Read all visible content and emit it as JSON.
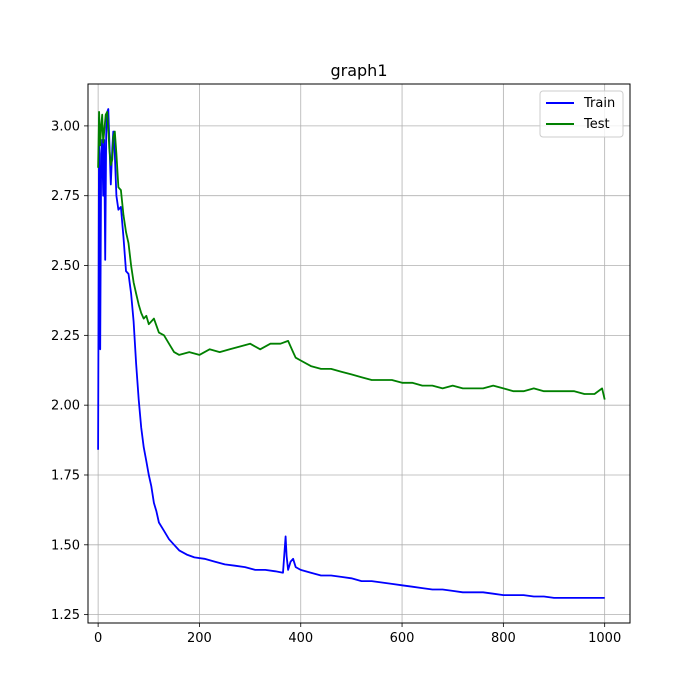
{
  "chart_data": {
    "type": "line",
    "title": "graph1",
    "xlabel": "",
    "ylabel": "",
    "xlim": [
      -20,
      1050
    ],
    "ylim": [
      1.22,
      3.15
    ],
    "xticks": [
      0,
      200,
      400,
      600,
      800,
      1000
    ],
    "xtick_labels": [
      "0",
      "200",
      "400",
      "600",
      "800",
      "1000"
    ],
    "yticks": [
      1.25,
      1.5,
      1.75,
      2.0,
      2.25,
      2.5,
      2.75,
      3.0
    ],
    "ytick_labels": [
      "1.25",
      "1.50",
      "1.75",
      "2.00",
      "2.25",
      "2.50",
      "2.75",
      "3.00"
    ],
    "grid": true,
    "legend_position": "top-right",
    "series": [
      {
        "name": "Train",
        "color": "#0000ff",
        "x": [
          0,
          2,
          4,
          6,
          8,
          10,
          12,
          14,
          16,
          18,
          20,
          22,
          25,
          28,
          30,
          33,
          36,
          40,
          45,
          50,
          55,
          60,
          65,
          70,
          75,
          80,
          85,
          90,
          95,
          100,
          105,
          110,
          115,
          120,
          130,
          140,
          150,
          160,
          175,
          190,
          210,
          230,
          250,
          270,
          290,
          310,
          330,
          350,
          365,
          370,
          372,
          375,
          380,
          385,
          390,
          400,
          420,
          440,
          460,
          480,
          500,
          520,
          540,
          560,
          580,
          600,
          620,
          640,
          660,
          680,
          700,
          720,
          740,
          760,
          780,
          800,
          820,
          840,
          860,
          880,
          900,
          920,
          940,
          960,
          980,
          1000
        ],
        "y": [
          1.84,
          3.03,
          2.2,
          2.9,
          2.95,
          2.75,
          2.95,
          2.52,
          2.97,
          3.05,
          3.06,
          2.95,
          2.79,
          2.92,
          2.98,
          2.9,
          2.75,
          2.7,
          2.71,
          2.6,
          2.48,
          2.47,
          2.4,
          2.3,
          2.15,
          2.02,
          1.92,
          1.85,
          1.8,
          1.75,
          1.71,
          1.65,
          1.62,
          1.58,
          1.55,
          1.52,
          1.5,
          1.48,
          1.465,
          1.455,
          1.45,
          1.44,
          1.43,
          1.425,
          1.42,
          1.41,
          1.41,
          1.405,
          1.4,
          1.53,
          1.46,
          1.41,
          1.44,
          1.45,
          1.42,
          1.41,
          1.4,
          1.39,
          1.39,
          1.385,
          1.38,
          1.37,
          1.37,
          1.365,
          1.36,
          1.355,
          1.35,
          1.345,
          1.34,
          1.34,
          1.335,
          1.33,
          1.33,
          1.33,
          1.325,
          1.32,
          1.32,
          1.32,
          1.315,
          1.315,
          1.31,
          1.31,
          1.31,
          1.31,
          1.31,
          1.31
        ]
      },
      {
        "name": "Test",
        "color": "#008000",
        "x": [
          0,
          2,
          4,
          6,
          8,
          10,
          12,
          15,
          18,
          20,
          22,
          25,
          28,
          30,
          33,
          36,
          40,
          45,
          50,
          55,
          60,
          65,
          70,
          75,
          80,
          85,
          90,
          95,
          100,
          110,
          120,
          130,
          140,
          150,
          160,
          180,
          200,
          220,
          240,
          260,
          280,
          300,
          320,
          340,
          360,
          375,
          380,
          385,
          390,
          400,
          420,
          440,
          460,
          480,
          500,
          520,
          540,
          560,
          580,
          600,
          620,
          640,
          660,
          680,
          700,
          720,
          740,
          760,
          780,
          800,
          820,
          840,
          860,
          880,
          900,
          920,
          940,
          960,
          980,
          995,
          1000
        ],
        "y": [
          2.85,
          3.05,
          2.93,
          3.0,
          3.04,
          2.94,
          2.98,
          3.04,
          3.05,
          2.99,
          2.92,
          2.86,
          2.88,
          2.96,
          2.98,
          2.9,
          2.78,
          2.77,
          2.68,
          2.62,
          2.58,
          2.5,
          2.44,
          2.4,
          2.36,
          2.33,
          2.31,
          2.32,
          2.29,
          2.31,
          2.26,
          2.25,
          2.22,
          2.19,
          2.18,
          2.19,
          2.18,
          2.2,
          2.19,
          2.2,
          2.21,
          2.22,
          2.2,
          2.22,
          2.22,
          2.23,
          2.21,
          2.19,
          2.17,
          2.16,
          2.14,
          2.13,
          2.13,
          2.12,
          2.11,
          2.1,
          2.09,
          2.09,
          2.09,
          2.08,
          2.08,
          2.07,
          2.07,
          2.06,
          2.07,
          2.06,
          2.06,
          2.06,
          2.07,
          2.06,
          2.05,
          2.05,
          2.06,
          2.05,
          2.05,
          2.05,
          2.05,
          2.04,
          2.04,
          2.06,
          2.02
        ]
      }
    ]
  }
}
